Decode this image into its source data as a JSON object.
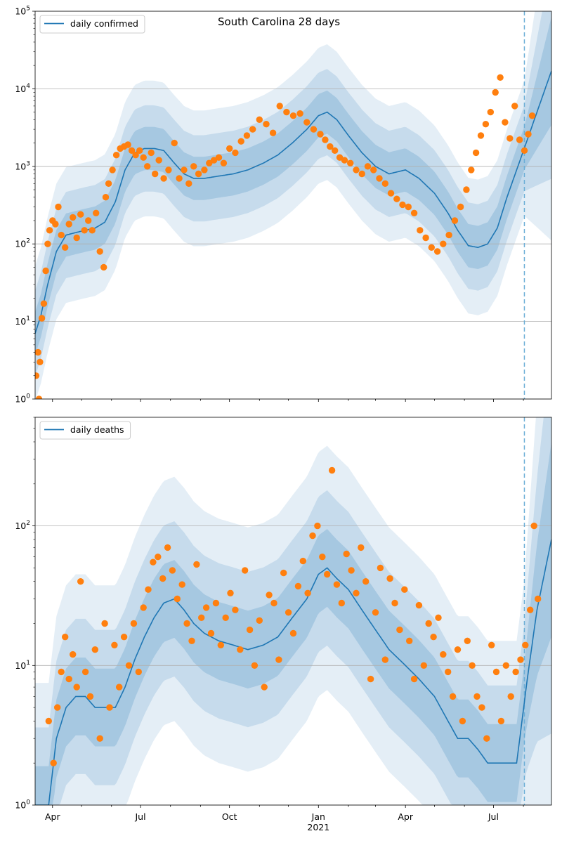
{
  "chart_data": [
    {
      "type": "line",
      "title": "South Carolina 28 days",
      "legend": {
        "placement": "top-left",
        "entries": [
          "daily confirmed"
        ]
      },
      "yscale": "log",
      "ylim": [
        1,
        100000
      ],
      "xlim": [
        "2020-03-14",
        "2021-08-30"
      ],
      "yticks": [
        1,
        10,
        100,
        1000,
        10000,
        100000
      ],
      "ytick_labels": [
        {
          "base": "10",
          "exp": "0"
        },
        {
          "base": "10",
          "exp": "1"
        },
        {
          "base": "10",
          "exp": "2"
        },
        {
          "base": "10",
          "exp": "3"
        },
        {
          "base": "10",
          "exp": "4"
        },
        {
          "base": "10",
          "exp": "5"
        }
      ],
      "grid": "y-major",
      "vline": "2021-08-02",
      "series": [
        {
          "name": "daily confirmed",
          "kind": "line",
          "color": "#1f77b4",
          "x": [
            "2020-03-14",
            "2020-03-20",
            "2020-03-27",
            "2020-04-05",
            "2020-04-15",
            "2020-04-25",
            "2020-05-05",
            "2020-05-15",
            "2020-05-25",
            "2020-06-05",
            "2020-06-15",
            "2020-06-25",
            "2020-07-05",
            "2020-07-15",
            "2020-07-25",
            "2020-08-05",
            "2020-08-15",
            "2020-08-25",
            "2020-09-05",
            "2020-09-20",
            "2020-10-05",
            "2020-10-20",
            "2020-11-05",
            "2020-11-20",
            "2020-12-05",
            "2020-12-20",
            "2021-01-01",
            "2021-01-10",
            "2021-01-20",
            "2021-02-01",
            "2021-02-15",
            "2021-03-01",
            "2021-03-15",
            "2021-04-01",
            "2021-04-15",
            "2021-05-01",
            "2021-05-15",
            "2021-05-25",
            "2021-06-05",
            "2021-06-15",
            "2021-06-25",
            "2021-07-05",
            "2021-07-15",
            "2021-07-25",
            "2021-08-05",
            "2021-08-15",
            "2021-08-30"
          ],
          "y": [
            7,
            12,
            30,
            80,
            130,
            140,
            150,
            160,
            190,
            350,
            900,
            1500,
            1700,
            1700,
            1600,
            1100,
            800,
            700,
            700,
            750,
            800,
            900,
            1100,
            1400,
            2000,
            3000,
            4500,
            5000,
            4000,
            2500,
            1500,
            1000,
            800,
            900,
            700,
            450,
            250,
            150,
            95,
            90,
            100,
            160,
            400,
            900,
            2200,
            5000,
            17000
          ]
        },
        {
          "name": "",
          "kind": "scatter",
          "color": "#ff7f0e",
          "x": [
            "2020-03-15",
            "2020-03-17",
            "2020-03-18",
            "2020-03-19",
            "2020-03-21",
            "2020-03-23",
            "2020-03-25",
            "2020-03-27",
            "2020-03-29",
            "2020-04-01",
            "2020-04-04",
            "2020-04-07",
            "2020-04-10",
            "2020-04-14",
            "2020-04-18",
            "2020-04-22",
            "2020-04-26",
            "2020-04-30",
            "2020-05-04",
            "2020-05-08",
            "2020-05-12",
            "2020-05-16",
            "2020-05-20",
            "2020-05-24",
            "2020-05-26",
            "2020-05-29",
            "2020-06-02",
            "2020-06-06",
            "2020-06-10",
            "2020-06-14",
            "2020-06-18",
            "2020-06-22",
            "2020-06-26",
            "2020-06-30",
            "2020-07-04",
            "2020-07-08",
            "2020-07-12",
            "2020-07-16",
            "2020-07-20",
            "2020-07-25",
            "2020-07-30",
            "2020-08-05",
            "2020-08-10",
            "2020-08-15",
            "2020-08-20",
            "2020-08-25",
            "2020-08-30",
            "2020-09-05",
            "2020-09-10",
            "2020-09-15",
            "2020-09-20",
            "2020-09-25",
            "2020-10-01",
            "2020-10-07",
            "2020-10-13",
            "2020-10-19",
            "2020-10-25",
            "2020-11-01",
            "2020-11-08",
            "2020-11-15",
            "2020-11-22",
            "2020-11-29",
            "2020-12-06",
            "2020-12-13",
            "2020-12-20",
            "2020-12-27",
            "2021-01-03",
            "2021-01-08",
            "2021-01-13",
            "2021-01-18",
            "2021-01-23",
            "2021-01-28",
            "2021-02-03",
            "2021-02-09",
            "2021-02-15",
            "2021-02-21",
            "2021-02-27",
            "2021-03-05",
            "2021-03-11",
            "2021-03-17",
            "2021-03-23",
            "2021-03-29",
            "2021-04-04",
            "2021-04-10",
            "2021-04-16",
            "2021-04-22",
            "2021-04-28",
            "2021-05-04",
            "2021-05-10",
            "2021-05-16",
            "2021-05-22",
            "2021-05-28",
            "2021-06-03",
            "2021-06-08",
            "2021-06-13",
            "2021-06-18",
            "2021-06-23",
            "2021-06-28",
            "2021-07-03",
            "2021-07-08",
            "2021-07-13",
            "2021-07-18",
            "2021-07-23",
            "2021-07-28",
            "2021-08-02",
            "2021-08-06",
            "2021-08-10"
          ],
          "y": [
            2,
            4,
            1,
            3,
            11,
            17,
            45,
            100,
            150,
            200,
            180,
            300,
            130,
            90,
            180,
            220,
            120,
            240,
            150,
            200,
            150,
            250,
            80,
            50,
            400,
            600,
            900,
            1400,
            1700,
            1800,
            1900,
            1600,
            1400,
            1600,
            1300,
            1000,
            1500,
            800,
            1200,
            700,
            900,
            2000,
            700,
            900,
            600,
            1000,
            800,
            900,
            1100,
            1200,
            1300,
            1100,
            1700,
            1500,
            2100,
            2500,
            3000,
            4000,
            3500,
            2700,
            6000,
            5000,
            4500,
            4800,
            3700,
            3000,
            2600,
            2200,
            1800,
            1600,
            1300,
            1200,
            1100,
            900,
            800,
            1000,
            900,
            700,
            600,
            450,
            380,
            320,
            300,
            250,
            150,
            120,
            90,
            80,
            100,
            130,
            200,
            300,
            500,
            900,
            1500,
            2500,
            3500,
            5000,
            9000,
            14000,
            3700,
            2300,
            6000,
            2200,
            1600,
            2600,
            4500
          ]
        }
      ]
    },
    {
      "type": "line",
      "title": "",
      "legend": {
        "placement": "top-left",
        "entries": [
          "daily deaths"
        ]
      },
      "yscale": "log",
      "ylim": [
        1,
        600
      ],
      "xlim": [
        "2020-03-14",
        "2021-08-30"
      ],
      "yticks": [
        1,
        10,
        100
      ],
      "ytick_labels": [
        {
          "base": "10",
          "exp": "0"
        },
        {
          "base": "10",
          "exp": "1"
        },
        {
          "base": "10",
          "exp": "2"
        }
      ],
      "xticks": [
        "2020-04-01",
        "2020-07-01",
        "2020-10-01",
        "2021-01-01",
        "2021-04-01",
        "2021-07-01"
      ],
      "xtick_labels": [
        "Apr",
        "Jul",
        "Oct",
        "Jan",
        "Apr",
        "Jul"
      ],
      "xtick_year": {
        "at": "2021-01-01",
        "label": "2021"
      },
      "grid": "y-major",
      "vline": "2021-08-02",
      "series": [
        {
          "name": "daily deaths",
          "kind": "line",
          "color": "#1f77b4",
          "x": [
            "2020-03-14",
            "2020-03-22",
            "2020-03-28",
            "2020-04-05",
            "2020-04-15",
            "2020-04-25",
            "2020-05-05",
            "2020-05-15",
            "2020-05-25",
            "2020-06-05",
            "2020-06-15",
            "2020-06-25",
            "2020-07-05",
            "2020-07-15",
            "2020-07-25",
            "2020-08-05",
            "2020-08-15",
            "2020-08-25",
            "2020-09-05",
            "2020-09-20",
            "2020-10-05",
            "2020-10-20",
            "2020-11-05",
            "2020-11-20",
            "2020-12-05",
            "2020-12-20",
            "2021-01-01",
            "2021-01-10",
            "2021-01-20",
            "2021-02-01",
            "2021-02-15",
            "2021-03-01",
            "2021-03-15",
            "2021-04-01",
            "2021-04-15",
            "2021-05-01",
            "2021-05-15",
            "2021-05-25",
            "2021-06-05",
            "2021-06-15",
            "2021-06-25",
            "2021-07-05",
            "2021-07-15",
            "2021-07-20",
            "2021-07-25",
            "2021-08-05",
            "2021-08-15",
            "2021-08-30"
          ],
          "y": [
            1,
            1,
            1,
            3,
            5,
            6,
            6,
            5,
            5,
            5,
            7,
            11,
            16,
            22,
            28,
            30,
            25,
            20,
            17,
            15,
            14,
            13,
            14,
            16,
            22,
            30,
            45,
            50,
            42,
            35,
            25,
            18,
            13,
            10,
            8,
            6,
            4,
            3,
            3,
            2.5,
            2,
            2,
            2,
            2,
            2,
            8,
            25,
            80
          ]
        },
        {
          "name": "",
          "kind": "scatter",
          "color": "#ff7f0e",
          "x": [
            "2020-03-28",
            "2020-04-02",
            "2020-04-06",
            "2020-04-10",
            "2020-04-14",
            "2020-04-18",
            "2020-04-22",
            "2020-04-26",
            "2020-04-30",
            "2020-05-05",
            "2020-05-10",
            "2020-05-15",
            "2020-05-20",
            "2020-05-25",
            "2020-05-30",
            "2020-06-04",
            "2020-06-09",
            "2020-06-14",
            "2020-06-19",
            "2020-06-24",
            "2020-06-29",
            "2020-07-04",
            "2020-07-09",
            "2020-07-14",
            "2020-07-19",
            "2020-07-24",
            "2020-07-29",
            "2020-08-03",
            "2020-08-08",
            "2020-08-13",
            "2020-08-18",
            "2020-08-23",
            "2020-08-28",
            "2020-09-02",
            "2020-09-07",
            "2020-09-12",
            "2020-09-17",
            "2020-09-22",
            "2020-09-27",
            "2020-10-02",
            "2020-10-07",
            "2020-10-12",
            "2020-10-17",
            "2020-10-22",
            "2020-10-27",
            "2020-11-01",
            "2020-11-06",
            "2020-11-11",
            "2020-11-16",
            "2020-11-21",
            "2020-11-26",
            "2020-12-01",
            "2020-12-06",
            "2020-12-11",
            "2020-12-16",
            "2020-12-21",
            "2020-12-26",
            "2020-12-31",
            "2021-01-05",
            "2021-01-10",
            "2021-01-15",
            "2021-01-20",
            "2021-01-25",
            "2021-01-30",
            "2021-02-04",
            "2021-02-09",
            "2021-02-14",
            "2021-02-19",
            "2021-02-24",
            "2021-03-01",
            "2021-03-06",
            "2021-03-11",
            "2021-03-16",
            "2021-03-21",
            "2021-03-26",
            "2021-03-31",
            "2021-04-05",
            "2021-04-10",
            "2021-04-15",
            "2021-04-20",
            "2021-04-25",
            "2021-04-30",
            "2021-05-05",
            "2021-05-10",
            "2021-05-15",
            "2021-05-20",
            "2021-05-25",
            "2021-05-30",
            "2021-06-04",
            "2021-06-09",
            "2021-06-14",
            "2021-06-19",
            "2021-06-24",
            "2021-06-29",
            "2021-07-04",
            "2021-07-09",
            "2021-07-14",
            "2021-07-19",
            "2021-07-24",
            "2021-07-29",
            "2021-08-03",
            "2021-08-08",
            "2021-08-12",
            "2021-08-16"
          ],
          "y": [
            4,
            2,
            5,
            9,
            16,
            8,
            12,
            7,
            40,
            9,
            6,
            13,
            3,
            20,
            5,
            14,
            7,
            16,
            10,
            20,
            9,
            26,
            35,
            55,
            60,
            42,
            70,
            48,
            30,
            38,
            20,
            15,
            53,
            22,
            26,
            17,
            28,
            14,
            22,
            33,
            25,
            13,
            48,
            18,
            10,
            21,
            7,
            32,
            28,
            11,
            46,
            24,
            17,
            37,
            56,
            33,
            85,
            100,
            60,
            45,
            250,
            38,
            28,
            63,
            48,
            33,
            70,
            40,
            8,
            24,
            50,
            11,
            42,
            28,
            18,
            35,
            15,
            8,
            27,
            10,
            20,
            16,
            22,
            12,
            9,
            6,
            13,
            4,
            15,
            10,
            6,
            5,
            3,
            14,
            9,
            4,
            10,
            6,
            9,
            11,
            14,
            25,
            100,
            30
          ]
        }
      ]
    }
  ]
}
